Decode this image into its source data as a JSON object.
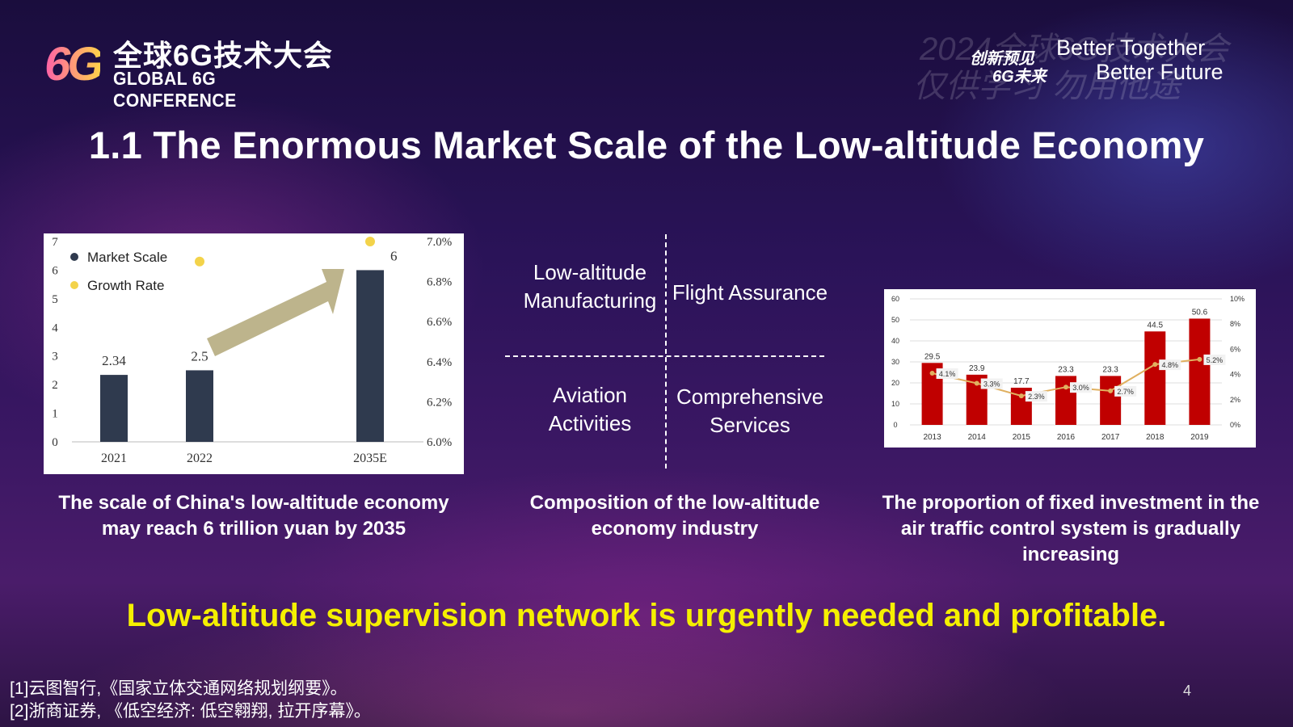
{
  "logo": {
    "mark": "6G",
    "cn_title": "全球6G技术大会",
    "en_title": "GLOBAL 6G CONFERENCE"
  },
  "watermark": {
    "line1": "2024全球6G技术大会",
    "line2": "仅供学习 勿用他途"
  },
  "slogan": {
    "cn_line1": "创新预见",
    "cn_line2": "6G未来",
    "en_line1": "Better Together",
    "en_line2": "Better Future"
  },
  "title": "1.1  The Enormous Market Scale of the Low-altitude Economy",
  "quadrant": {
    "top_left": "Low-altitude Manufacturing",
    "top_right": "Flight Assurance",
    "bottom_left": "Aviation Activities",
    "bottom_right": "Comprehensive Services"
  },
  "captions": {
    "chart1": "The scale of China's low-altitude economy may reach 6 trillion yuan by 2035",
    "quadrant": "Composition of the low-altitude economy industry",
    "chart3": "The proportion of fixed investment in the air traffic control system is gradually increasing"
  },
  "conclusion": "Low-altitude supervision network is urgently needed and profitable.",
  "references": [
    "[1]云图智行,《国家立体交通网络规划纲要》。",
    "[2]浙商证券, 《低空经济: 低空翱翔, 拉开序幕》。"
  ],
  "page_number": "4",
  "colors": {
    "bar_dark": "#2f3a4e",
    "growth_dot": "#f3d34a",
    "arrow": "#bdb48c",
    "bar_red": "#c00000",
    "line_orange": "#e0b060",
    "conclusion": "#f5f000"
  },
  "chart_data": [
    {
      "type": "bar",
      "categories": [
        "2021",
        "2022",
        "2035E"
      ],
      "series": [
        {
          "name": "Market Scale",
          "values": [
            2.34,
            2.5,
            6
          ]
        },
        {
          "name": "Growth Rate",
          "values": [
            null,
            0.069,
            0.07
          ]
        }
      ],
      "data_labels": [
        "2.34",
        "2.5",
        "6"
      ],
      "ylim": [
        0,
        7
      ],
      "y_ticks": [
        "0",
        "1",
        "2",
        "3",
        "4",
        "5",
        "6",
        "7"
      ],
      "y2lim": [
        0.06,
        0.07
      ],
      "y2_ticks": [
        "6.0%",
        "6.2%",
        "6.4%",
        "6.6%",
        "6.8%",
        "7.0%"
      ],
      "legend": "top-left"
    },
    {
      "type": "bar",
      "categories": [
        "2013",
        "2014",
        "2015",
        "2016",
        "2017",
        "2018",
        "2019"
      ],
      "values": [
        29.5,
        23.9,
        17.7,
        23.3,
        23.3,
        44.5,
        50.6
      ],
      "value_labels": [
        "29.5",
        "23.9",
        "17.7",
        "23.3",
        "23.3",
        "44.5",
        "50.6"
      ],
      "line": [
        0.041,
        0.033,
        0.023,
        0.03,
        0.027,
        0.048,
        0.052
      ],
      "line_labels": [
        "4.1%",
        "3.3%",
        "2.3%",
        "3.0%",
        "2.7%",
        "4.8%",
        "5.2%"
      ],
      "ylim": [
        0,
        60
      ],
      "y_ticks": [
        "0",
        "10",
        "20",
        "30",
        "40",
        "50",
        "60"
      ],
      "y2lim": [
        0,
        0.1
      ],
      "y2_ticks": [
        "0%",
        "2%",
        "4%",
        "6%",
        "8%",
        "10%"
      ],
      "grid": true
    }
  ]
}
